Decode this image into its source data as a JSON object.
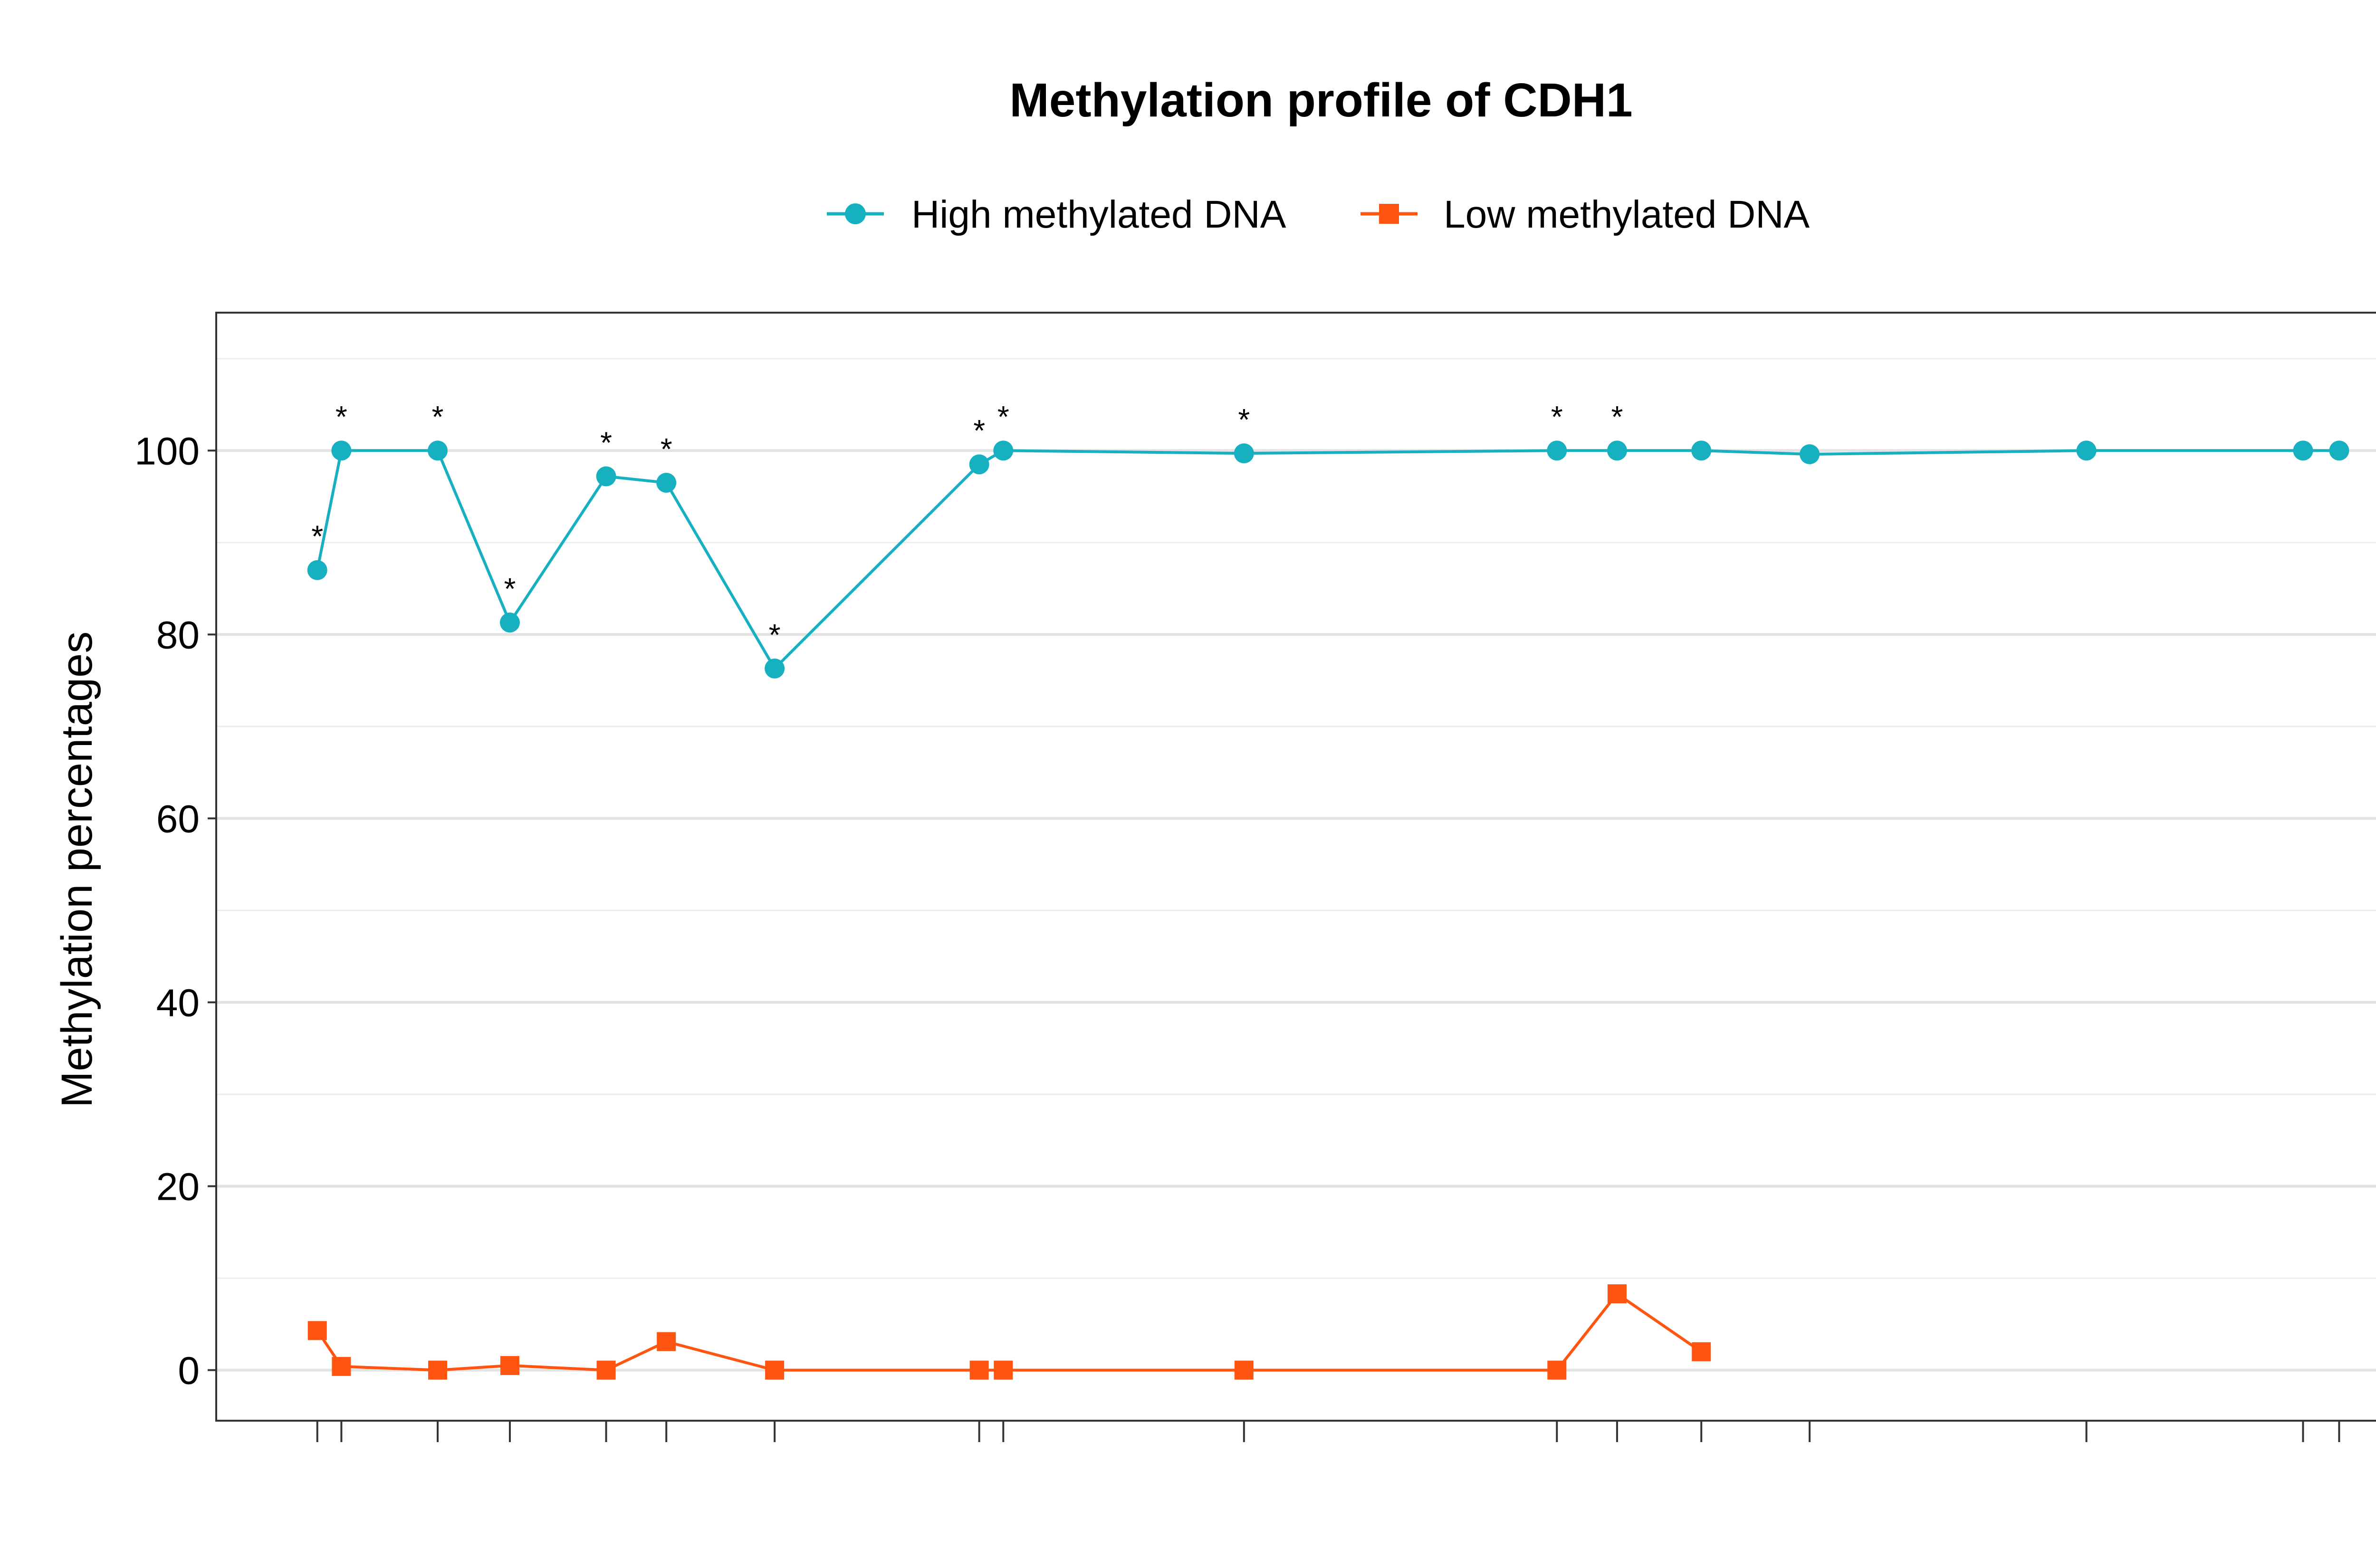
{
  "chart_data": {
    "type": "line",
    "title": "Methylation profile of CDH1",
    "xlabel": "",
    "ylabel": "Methylation percentages",
    "ylim": [
      -5.5,
      115
    ],
    "yticks": [
      0,
      20,
      40,
      60,
      80,
      100
    ],
    "grid": true,
    "legend_position": "top",
    "significance_marker": "*",
    "x": [
      1,
      2,
      6,
      9,
      13,
      15.5,
      20,
      28.5,
      29.5,
      39.5,
      52.5,
      55,
      58.5,
      63,
      74.5,
      83.5,
      85
    ],
    "series": [
      {
        "name": "High methylated DNA",
        "color": "#17b0c1",
        "marker": "circle",
        "values": [
          87,
          100,
          100,
          81.3,
          97.2,
          96.5,
          76.3,
          98.5,
          100,
          99.7,
          100,
          100,
          100,
          99.6,
          100,
          100,
          100
        ]
      },
      {
        "name": "Low methylated DNA",
        "color": "#ff5510",
        "marker": "square",
        "values": [
          4.3,
          0.4,
          0,
          0.5,
          0,
          3.1,
          0,
          0,
          0,
          0,
          0,
          8.3,
          2.0,
          null,
          null,
          null,
          null
        ]
      }
    ],
    "annotations": [
      {
        "x": 1,
        "y": 91.4,
        "text": "*"
      },
      {
        "x": 2,
        "y": 104.4,
        "text": "*"
      },
      {
        "x": 6,
        "y": 104.4,
        "text": "*"
      },
      {
        "x": 9,
        "y": 85.7,
        "text": "*"
      },
      {
        "x": 13,
        "y": 101.6,
        "text": "*"
      },
      {
        "x": 15.5,
        "y": 100.9,
        "text": "*"
      },
      {
        "x": 20,
        "y": 80.7,
        "text": "*"
      },
      {
        "x": 28.5,
        "y": 102.9,
        "text": "*"
      },
      {
        "x": 29.5,
        "y": 104.4,
        "text": "*"
      },
      {
        "x": 39.5,
        "y": 104.1,
        "text": "*"
      },
      {
        "x": 52.5,
        "y": 104.4,
        "text": "*"
      },
      {
        "x": 55,
        "y": 104.4,
        "text": "*"
      }
    ],
    "xlim": [
      -3.2,
      88.9
    ]
  }
}
